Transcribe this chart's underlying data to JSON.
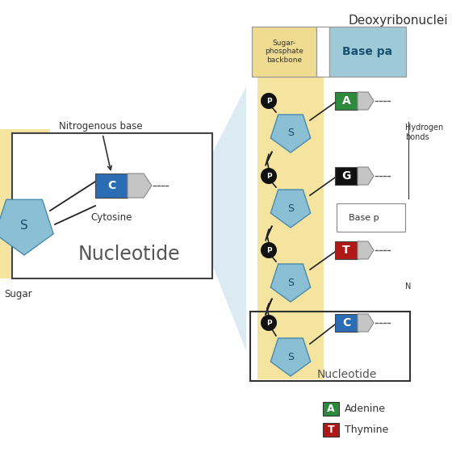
{
  "title_right": "Deoxyribonuclei",
  "sugar_phosphate_label": "Sugar-\nphosphate\nbackbone",
  "base_pair_label": "Base pa",
  "nucleotide_label": "Nucleotide",
  "nitrogenous_base_label": "Nitrogenous base",
  "cytosine_label": "Cytosine",
  "sugar_label": "Sugar",
  "hydrogen_bonds_label": "Hydrogen\nbonds",
  "base_p_label": "Base p",
  "n_label": "N",
  "yellow_bg": "#f5e4a0",
  "blue_header_bg": "#9ecad8",
  "pentagon_fill": "#8bbfd4",
  "pentagon_edge": "#4a8aac",
  "phosphate_fill": "#111111",
  "base_A_fill": "#2d8a3c",
  "base_G_fill": "#111111",
  "base_T_fill": "#b01818",
  "base_C_fill": "#2a6db5",
  "flag_fill": "#c5c5c5",
  "flag_edge": "#888888",
  "zoom_fill": "#c5dce8",
  "box_edge": "#444444",
  "legend_A": "#2d8a3c",
  "legend_T": "#b01818",
  "adenine_label": "Adenine",
  "thymine_label": "Thymine",
  "text_dark": "#333333",
  "conn_color": "#222222",
  "white_fill": "#ffffff",
  "header_yellow": "#f0dc90"
}
